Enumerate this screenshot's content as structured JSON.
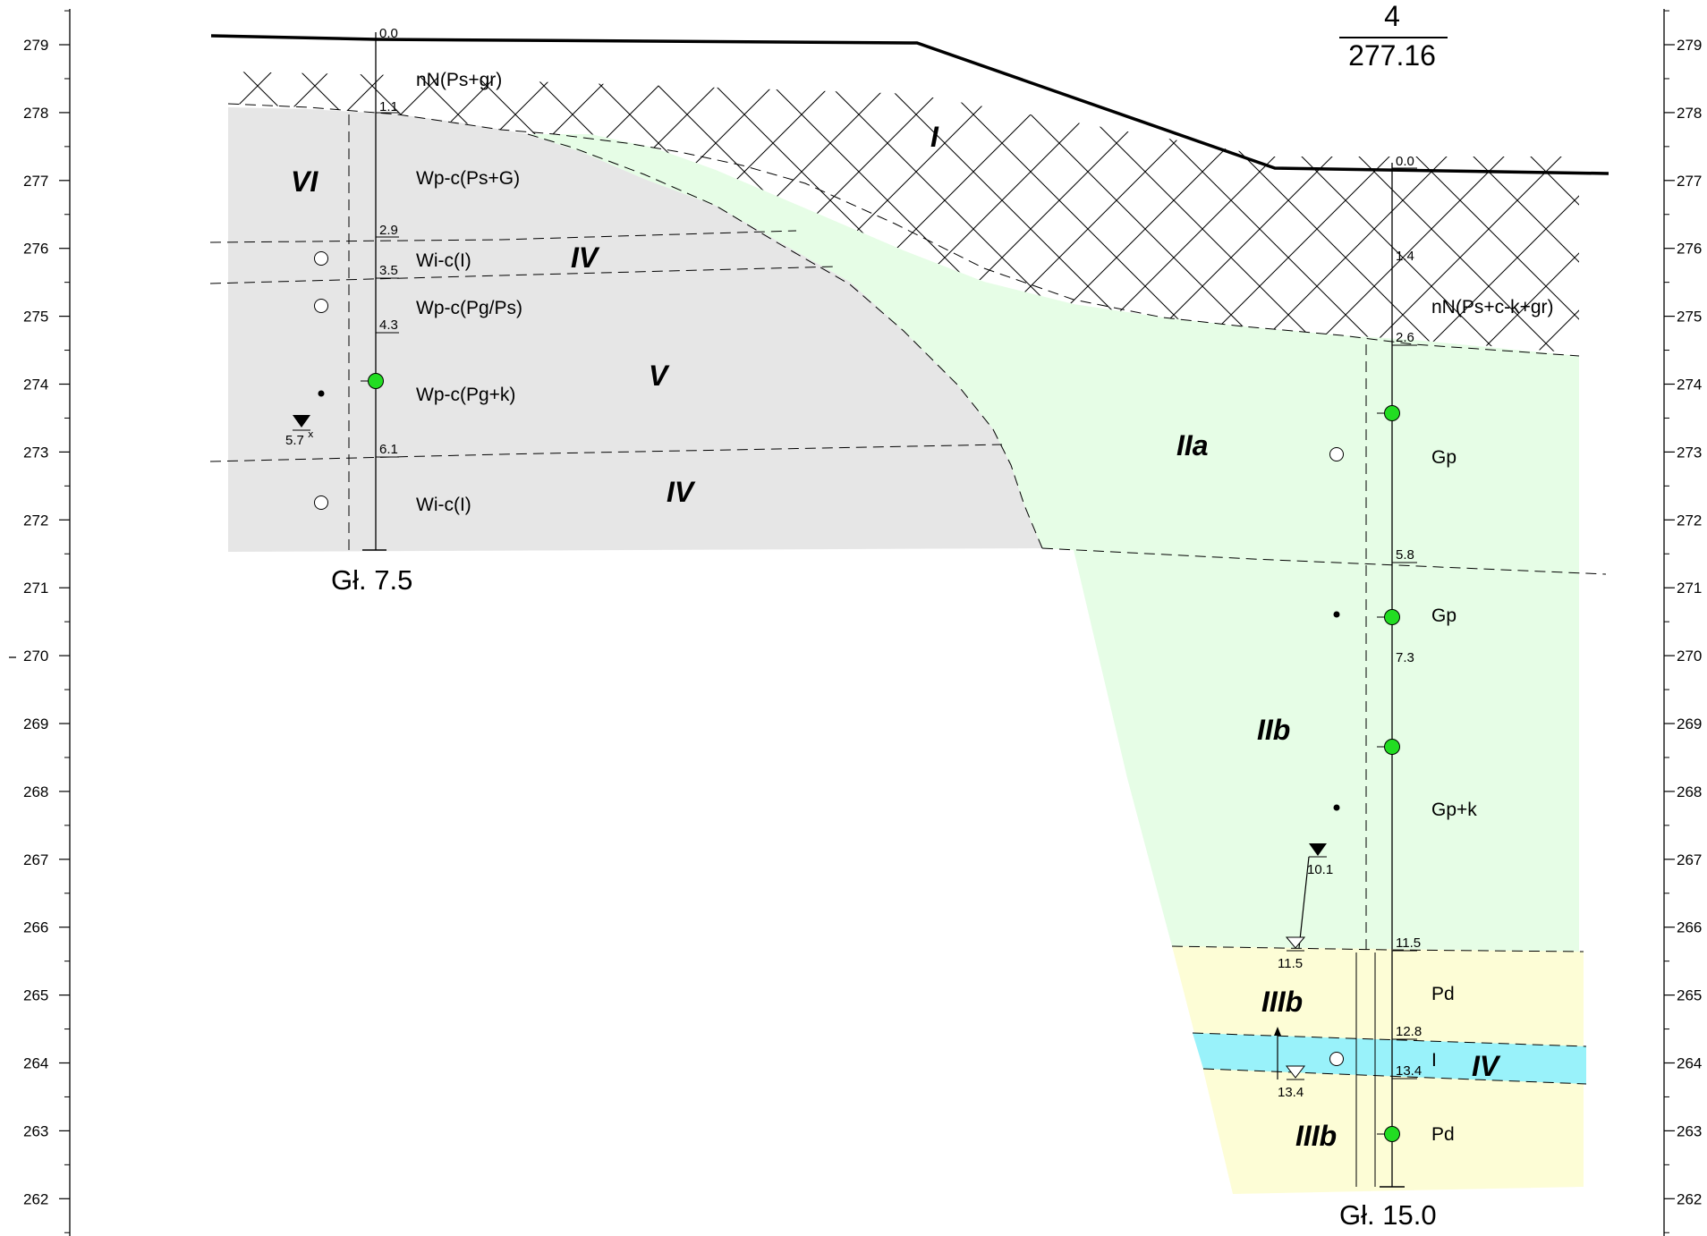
{
  "elevation_axis": {
    "ticks": [
      "279",
      "278",
      "277",
      "276",
      "275",
      "274",
      "273",
      "272",
      "271",
      "270",
      "269",
      "268",
      "267",
      "266",
      "265",
      "264",
      "263",
      "262"
    ]
  },
  "borehole_4": {
    "number": "4",
    "ground_elevation": "277.16",
    "bottom_label": "Gł. 15.0",
    "depths": [
      "0.0",
      "1.4",
      "2.6",
      "5.8",
      "7.3",
      "11.5",
      "12.8",
      "13.4"
    ],
    "soils": [
      "nN(Ps+c-k+gr)",
      "Gp",
      "Gp",
      "Gp+k",
      "Pd",
      "I",
      "Pd"
    ],
    "water_levels": [
      "10.1",
      "11.5",
      "13.4"
    ]
  },
  "borehole_left": {
    "bottom_label": "Gł. 7.5",
    "depths": [
      "0.0",
      "1.1",
      "2.9",
      "3.5",
      "4.3",
      "6.1"
    ],
    "soils": [
      "nN(Ps+gr)",
      "Wp-c(Ps+G)",
      "Wi-c(I)",
      "Wp-c(Pg/Ps)",
      "Wp-c(Pg+k)",
      "Wi-c(I)"
    ],
    "water_levels": [
      "5.7"
    ]
  },
  "geotechnical_layers": [
    "I",
    "VI",
    "IV",
    "V",
    "IV",
    "IIa",
    "IIb",
    "IIIb",
    "IV",
    "IIIb"
  ],
  "colors": {
    "layer_grey": "#e6e6e6",
    "layer_green": "#e6fde6",
    "layer_yellow": "#fdfdd6",
    "layer_cyan": "#99f2fa",
    "sample_marker": "#22dd22"
  }
}
